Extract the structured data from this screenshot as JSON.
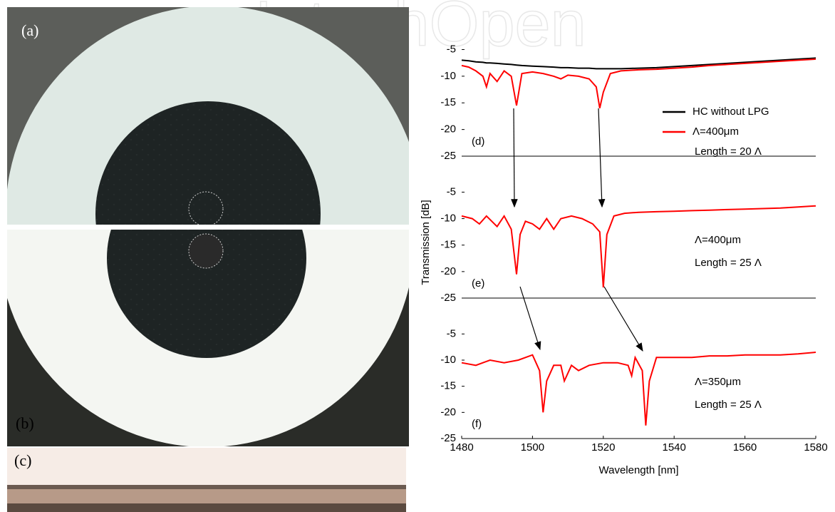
{
  "figure": {
    "watermark": "IntechOpen",
    "photo_labels": [
      "(a)",
      "(b)",
      "(c)"
    ]
  },
  "chart_data": [
    {
      "type": "line",
      "panel_label": "(d)",
      "x": [
        1480,
        1482,
        1484,
        1486,
        1487,
        1488,
        1490,
        1492,
        1494,
        1495.5,
        1497,
        1500,
        1503,
        1506,
        1508,
        1510,
        1513,
        1516,
        1518,
        1519,
        1520,
        1522,
        1525,
        1530,
        1535,
        1540,
        1545,
        1550,
        1555,
        1560,
        1565,
        1570,
        1575,
        1580
      ],
      "series": [
        {
          "name": "HC without LPG",
          "color": "#000000",
          "values": [
            -7,
            -7.1,
            -7.3,
            -7.4,
            -7.5,
            -7.5,
            -7.6,
            -7.7,
            -7.8,
            -7.9,
            -8,
            -8.1,
            -8.2,
            -8.3,
            -8.4,
            -8.4,
            -8.5,
            -8.5,
            -8.6,
            -8.6,
            -8.6,
            -8.6,
            -8.6,
            -8.5,
            -8.4,
            -8.2,
            -8,
            -7.8,
            -7.6,
            -7.4,
            -7.2,
            -7,
            -6.8,
            -6.6
          ]
        },
        {
          "name": "Λ=400μm",
          "color": "#ff0000",
          "values": [
            -8,
            -8.3,
            -9,
            -10,
            -12,
            -9.5,
            -11,
            -9,
            -10,
            -15.5,
            -9.5,
            -9.2,
            -9.5,
            -10,
            -10.5,
            -9.8,
            -10,
            -10.5,
            -12,
            -16,
            -13,
            -9.5,
            -9,
            -8.8,
            -8.7,
            -8.5,
            -8.3,
            -8,
            -7.8,
            -7.6,
            -7.4,
            -7.2,
            -7,
            -6.8
          ]
        }
      ],
      "annotations": [
        "Length = 20 Λ"
      ],
      "xlim": [
        1480,
        1580
      ],
      "ylim": [
        -25,
        -4
      ],
      "yticks": [
        -5,
        -10,
        -15,
        -20,
        -25
      ]
    },
    {
      "type": "line",
      "panel_label": "(e)",
      "ylabel": "Transmission [dB]",
      "x": [
        1480,
        1483,
        1485,
        1487,
        1490,
        1492,
        1494,
        1495.5,
        1496.5,
        1498,
        1500,
        1502,
        1504,
        1506,
        1508,
        1511,
        1514,
        1517,
        1519,
        1520,
        1521,
        1523,
        1526,
        1530,
        1535,
        1540,
        1545,
        1550,
        1555,
        1560,
        1565,
        1570,
        1575,
        1580
      ],
      "series": [
        {
          "color": "#ff0000",
          "values": [
            -9.5,
            -10,
            -11,
            -9.5,
            -11.5,
            -9.5,
            -12,
            -20.5,
            -13,
            -10.5,
            -11,
            -12,
            -10,
            -12,
            -10,
            -9.5,
            -10,
            -11,
            -12.5,
            -23,
            -13,
            -9.5,
            -9,
            -8.8,
            -8.7,
            -8.6,
            -8.5,
            -8.4,
            -8.3,
            -8.2,
            -8.1,
            -8,
            -7.8,
            -7.6
          ]
        }
      ],
      "annotations": [
        "Λ=400μm",
        "Length = 25 Λ"
      ],
      "xlim": [
        1480,
        1580
      ],
      "ylim": [
        -25,
        -4
      ],
      "yticks": [
        -5,
        -10,
        -15,
        -20,
        -25
      ]
    },
    {
      "type": "line",
      "panel_label": "(f)",
      "xlabel": "Wavelength [nm]",
      "x": [
        1480,
        1484,
        1488,
        1492,
        1496,
        1500,
        1502,
        1503,
        1504,
        1506,
        1508,
        1509,
        1511,
        1513,
        1516,
        1520,
        1524,
        1527,
        1528,
        1529,
        1531,
        1532,
        1533,
        1535,
        1540,
        1545,
        1550,
        1555,
        1560,
        1565,
        1570,
        1575,
        1580
      ],
      "series": [
        {
          "color": "#ff0000",
          "values": [
            -10.5,
            -11,
            -10,
            -10.5,
            -10,
            -9,
            -12,
            -20,
            -14,
            -11,
            -11,
            -14,
            -11,
            -12,
            -11,
            -10.5,
            -10.5,
            -11,
            -13,
            -9.5,
            -12,
            -22.5,
            -14,
            -9.5,
            -9.5,
            -9.5,
            -9.2,
            -9.2,
            -9,
            -9,
            -9,
            -8.8,
            -8.5
          ]
        }
      ],
      "annotations": [
        "Λ=350μm",
        "Length = 25 Λ"
      ],
      "xlim": [
        1480,
        1580
      ],
      "ylim": [
        -25,
        -4
      ],
      "yticks": [
        -5,
        -10,
        -15,
        -20,
        -25
      ],
      "xticks": [
        1480,
        1500,
        1520,
        1540,
        1560,
        1580
      ]
    }
  ]
}
